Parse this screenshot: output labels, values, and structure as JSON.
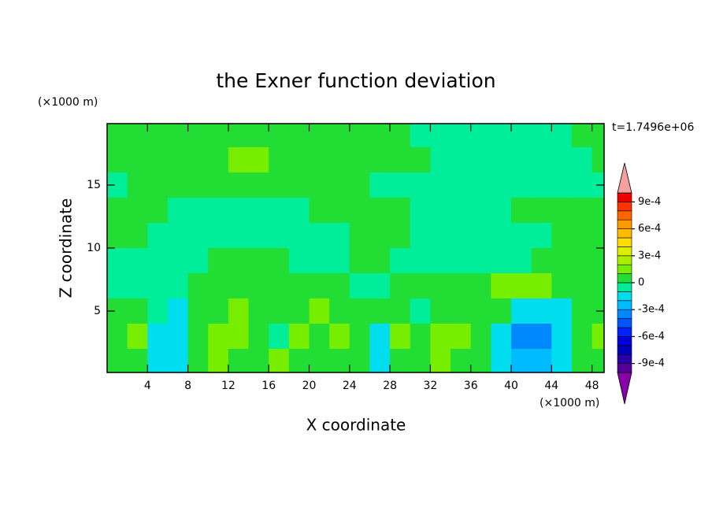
{
  "chart_data": {
    "type": "contour",
    "title": "the Exner function deviation",
    "xlabel": "X coordinate",
    "ylabel": "Z coordinate",
    "x_unit_label": "(×1000 m)",
    "y_unit_label": "(×1000 m)",
    "time_label": "t=1.7496e+06",
    "xlim": [
      0,
      49.2
    ],
    "ylim": [
      0.125,
      19.875
    ],
    "xticks": [
      4,
      8,
      12,
      16,
      20,
      24,
      28,
      32,
      36,
      40,
      44,
      48
    ],
    "yticks": [
      5,
      10,
      15
    ],
    "x": [
      1,
      3,
      5,
      7,
      9,
      11,
      13,
      15,
      17,
      19,
      21,
      23,
      25,
      27,
      29,
      31,
      33,
      35,
      37,
      39,
      41,
      43,
      45,
      47,
      49
    ],
    "z": [
      19,
      17,
      15,
      13,
      11,
      9,
      7,
      5,
      3,
      1
    ],
    "field": [
      [
        5e-05,
        5e-05,
        5e-05,
        5e-05,
        5e-05,
        5e-05,
        5e-05,
        5e-05,
        5e-05,
        5e-05,
        5e-05,
        5e-05,
        5e-05,
        5e-05,
        5e-05,
        -5e-05,
        -5e-05,
        -5e-05,
        -5e-05,
        -5e-05,
        -5e-05,
        -5e-05,
        -5e-05,
        5e-05,
        5e-05
      ],
      [
        5e-05,
        5e-05,
        5e-05,
        5e-05,
        5e-05,
        5e-05,
        0.00015,
        0.00015,
        5e-05,
        5e-05,
        5e-05,
        5e-05,
        5e-05,
        5e-05,
        5e-05,
        5e-05,
        -5e-05,
        -5e-05,
        -5e-05,
        -5e-05,
        -5e-05,
        -5e-05,
        -5e-05,
        -5e-05,
        5e-05
      ],
      [
        -5e-05,
        5e-05,
        5e-05,
        5e-05,
        5e-05,
        5e-05,
        5e-05,
        5e-05,
        5e-05,
        5e-05,
        5e-05,
        5e-05,
        5e-05,
        -5e-05,
        -5e-05,
        -5e-05,
        -5e-05,
        -5e-05,
        -5e-05,
        -5e-05,
        -5e-05,
        -5e-05,
        -5e-05,
        -5e-05,
        -5e-05
      ],
      [
        5e-05,
        5e-05,
        5e-05,
        -5e-05,
        -5e-05,
        -5e-05,
        -5e-05,
        -5e-05,
        -5e-05,
        -5e-05,
        5e-05,
        5e-05,
        5e-05,
        5e-05,
        5e-05,
        -5e-05,
        -5e-05,
        -5e-05,
        -5e-05,
        -5e-05,
        5e-05,
        5e-05,
        5e-05,
        5e-05,
        5e-05
      ],
      [
        5e-05,
        5e-05,
        -5e-05,
        -5e-05,
        -5e-05,
        -5e-05,
        -5e-05,
        -5e-05,
        -5e-05,
        -5e-05,
        -5e-05,
        -5e-05,
        5e-05,
        5e-05,
        5e-05,
        -5e-05,
        -5e-05,
        -5e-05,
        -5e-05,
        -5e-05,
        -5e-05,
        -5e-05,
        5e-05,
        5e-05,
        5e-05
      ],
      [
        -5e-05,
        -5e-05,
        -5e-05,
        -5e-05,
        -5e-05,
        5e-05,
        5e-05,
        5e-05,
        5e-05,
        -5e-05,
        -5e-05,
        -5e-05,
        5e-05,
        5e-05,
        -5e-05,
        -5e-05,
        -5e-05,
        -5e-05,
        -5e-05,
        -5e-05,
        -5e-05,
        5e-05,
        5e-05,
        5e-05,
        5e-05
      ],
      [
        -5e-05,
        -5e-05,
        -5e-05,
        -5e-05,
        5e-05,
        5e-05,
        5e-05,
        5e-05,
        5e-05,
        5e-05,
        5e-05,
        5e-05,
        -5e-05,
        -5e-05,
        5e-05,
        5e-05,
        5e-05,
        5e-05,
        5e-05,
        0.00015,
        0.00015,
        0.00015,
        5e-05,
        5e-05,
        5e-05
      ],
      [
        5e-05,
        5e-05,
        -5e-05,
        -0.00015,
        5e-05,
        5e-05,
        0.00015,
        5e-05,
        5e-05,
        5e-05,
        0.00015,
        5e-05,
        5e-05,
        5e-05,
        5e-05,
        -5e-05,
        5e-05,
        5e-05,
        5e-05,
        5e-05,
        -0.00015,
        -0.00015,
        -0.00015,
        5e-05,
        5e-05
      ],
      [
        5e-05,
        0.00015,
        -0.00015,
        -0.00015,
        5e-05,
        0.00015,
        0.00015,
        5e-05,
        -5e-05,
        0.00015,
        5e-05,
        0.00015,
        5e-05,
        -0.00015,
        0.00015,
        5e-05,
        0.00015,
        0.00015,
        5e-05,
        -0.00015,
        -0.00035,
        -0.00035,
        -0.00015,
        5e-05,
        0.00015
      ],
      [
        5e-05,
        5e-05,
        -0.00015,
        -0.00015,
        5e-05,
        0.00015,
        5e-05,
        5e-05,
        0.00015,
        5e-05,
        5e-05,
        5e-05,
        5e-05,
        -0.00015,
        5e-05,
        5e-05,
        0.00015,
        5e-05,
        5e-05,
        -0.00015,
        -0.00025,
        -0.00025,
        -0.00015,
        5e-05,
        5e-05
      ]
    ],
    "levels": [
      -0.001,
      -0.0009,
      -0.0008,
      -0.0007,
      -0.0006,
      -0.0005,
      -0.0004,
      -0.0003,
      -0.0002,
      -0.0001,
      0,
      0.0001,
      0.0002,
      0.0003,
      0.0004,
      0.0005,
      0.0006,
      0.0007,
      0.0008,
      0.0009,
      0.001
    ],
    "colors": [
      "#550099",
      "#2a00aa",
      "#0000bb",
      "#0000dd",
      "#0022ff",
      "#0055ff",
      "#0088ff",
      "#00bbff",
      "#00ddee",
      "#00ee99",
      "#22dd33",
      "#77ee00",
      "#aaee00",
      "#ddee00",
      "#ffdd00",
      "#ffbb00",
      "#ff9900",
      "#ff6600",
      "#ff3300",
      "#ee0000"
    ],
    "over_color": "#f4a0a0",
    "under_color": "#8800aa",
    "cbar_ticks": [
      {
        "value": 0.0009,
        "label": "9e-4"
      },
      {
        "value": 0.0006,
        "label": "6e-4"
      },
      {
        "value": 0.0003,
        "label": "3e-4"
      },
      0,
      {
        "value": -0.0003,
        "label": "-3e-4"
      },
      {
        "value": -0.0006,
        "label": "-6e-4"
      },
      {
        "value": -0.0009,
        "label": "-9e-4"
      }
    ]
  }
}
